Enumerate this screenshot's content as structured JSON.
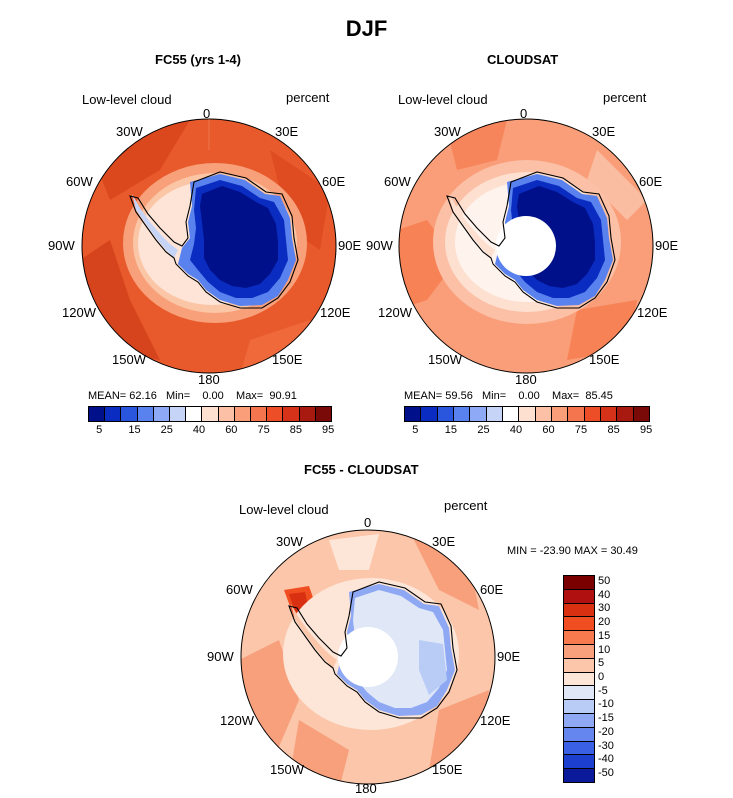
{
  "figure_title": "DJF",
  "panels": [
    {
      "title": "FC55 (yrs 1-4)",
      "left_label": "Low-level cloud",
      "right_label": "percent",
      "stats": {
        "mean_label": "MEAN=",
        "mean": "62.16",
        "min_label": "Min=",
        "min": "0.00",
        "max_label": "Max=",
        "max": "90.91"
      },
      "colorbar_ticks": [
        "5",
        "15",
        "25",
        "40",
        "60",
        "75",
        "85",
        "95"
      ]
    },
    {
      "title": "CLOUDSAT",
      "left_label": "Low-level cloud",
      "right_label": "percent",
      "stats": {
        "mean_label": "MEAN=",
        "mean": "59.56",
        "min_label": "Min=",
        "min": "0.00",
        "max_label": "Max=",
        "max": "85.45"
      },
      "colorbar_ticks": [
        "5",
        "15",
        "25",
        "40",
        "60",
        "75",
        "85",
        "95"
      ]
    },
    {
      "title": "FC55 - CLOUDSAT",
      "left_label": "Low-level cloud",
      "right_label": "percent",
      "minmax_text": "MIN = -23.90 MAX =  30.49",
      "colorbar_ticks": [
        "50",
        "40",
        "30",
        "20",
        "15",
        "10",
        "5",
        "0",
        "-5",
        "-10",
        "-15",
        "-20",
        "-30",
        "-40",
        "-50"
      ]
    }
  ],
  "longitude_labels": {
    "lon0": "0",
    "lon30e": "30E",
    "lon60e": "60E",
    "lon90e": "90E",
    "lon120e": "120E",
    "lon150e": "150E",
    "lon180": "180",
    "lon150w": "150W",
    "lon120w": "120W",
    "lon90w": "90W",
    "lon60w": "60W",
    "lon30w": "30W"
  },
  "colors": {
    "seq_scale": [
      "#00108a",
      "#0a2cc0",
      "#2a55dd",
      "#5a82ee",
      "#8eaaf6",
      "#c6d4f8",
      "#ffffff",
      "#fde0d0",
      "#fbc0a5",
      "#f99e78",
      "#f5764e",
      "#ed4e28",
      "#d6321a",
      "#a81a10",
      "#7a0a08"
    ],
    "div_scale": [
      "#7a0000",
      "#b01010",
      "#d83010",
      "#f04e20",
      "#f67a4e",
      "#f8a07c",
      "#fbc6aa",
      "#fde6d8",
      "#e0e8f8",
      "#b8ccf6",
      "#8ea8f4",
      "#6486ee",
      "#3a60e6",
      "#1c3fd0",
      "#0a1a9a"
    ]
  }
}
